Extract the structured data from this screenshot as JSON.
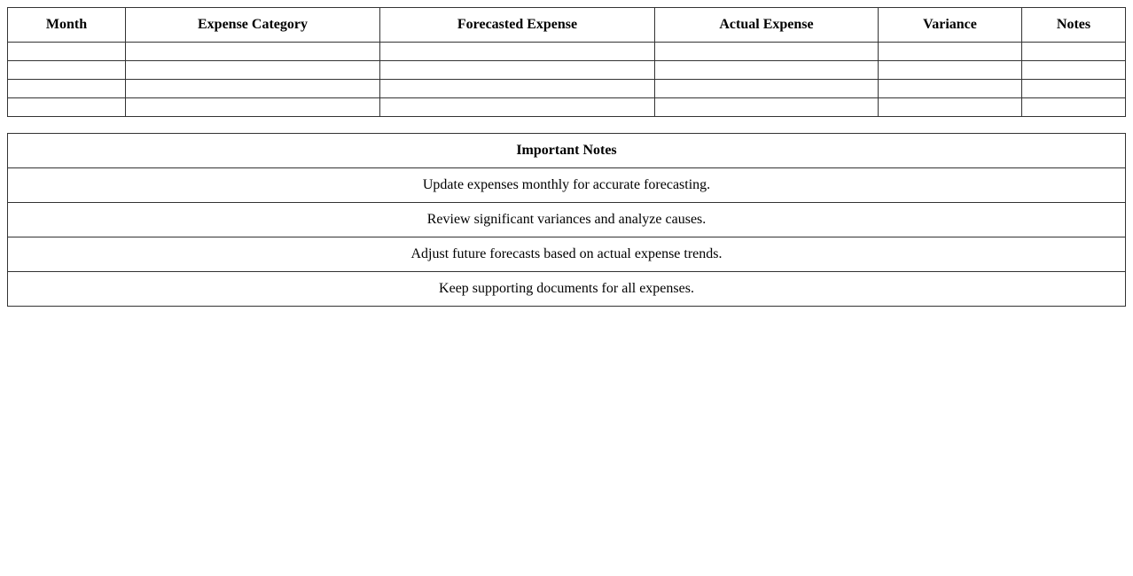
{
  "expense_table": {
    "headers": [
      "Month",
      "Expense Category",
      "Forecasted Expense",
      "Actual Expense",
      "Variance",
      "Notes"
    ],
    "rows": [
      [
        "",
        "",
        "",
        "",
        "",
        ""
      ],
      [
        "",
        "",
        "",
        "",
        "",
        ""
      ],
      [
        "",
        "",
        "",
        "",
        "",
        ""
      ],
      [
        "",
        "",
        "",
        "",
        "",
        ""
      ]
    ]
  },
  "notes_table": {
    "title": "Important Notes",
    "items": [
      "Update expenses monthly for accurate forecasting.",
      "Review significant variances and analyze causes.",
      "Adjust future forecasts based on actual expense trends.",
      "Keep supporting documents for all expenses."
    ]
  }
}
